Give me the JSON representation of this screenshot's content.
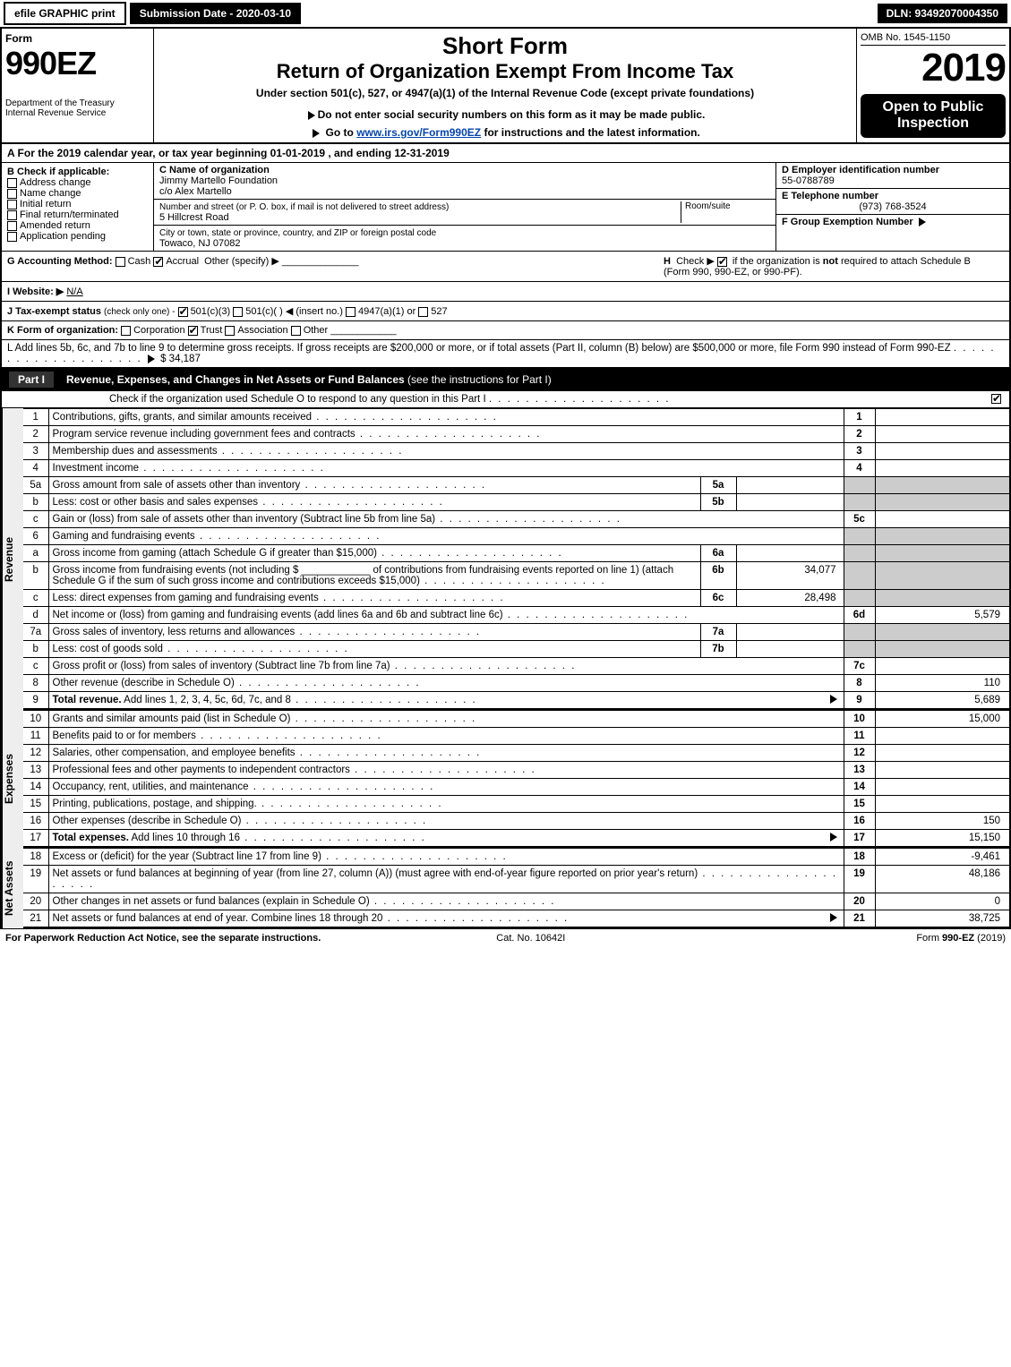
{
  "topbar": {
    "efile": "efile GRAPHIC print",
    "submission_label": "Submission Date - 2020-03-10",
    "dln": "DLN: 93492070004350"
  },
  "header": {
    "form_word": "Form",
    "form_num": "990EZ",
    "dept": "Department of the Treasury",
    "irs": "Internal Revenue Service",
    "title1": "Short Form",
    "title2": "Return of Organization Exempt From Income Tax",
    "subtitle": "Under section 501(c), 527, or 4947(a)(1) of the Internal Revenue Code (except private foundations)",
    "warn": "Do not enter social security numbers on this form as it may be made public.",
    "goto_pre": "Go to ",
    "goto_link": "www.irs.gov/Form990EZ",
    "goto_post": " for instructions and the latest information.",
    "omb": "OMB No. 1545-1150",
    "year": "2019",
    "open": "Open to Public Inspection"
  },
  "period": {
    "text": "A For the 2019 calendar year, or tax year beginning 01-01-2019 , and ending 12-31-2019"
  },
  "boxB": {
    "title": "B Check if applicable:",
    "opts": [
      "Address change",
      "Name change",
      "Initial return",
      "Final return/terminated",
      "Amended return",
      "Application pending"
    ]
  },
  "boxC": {
    "name_label": "C Name of organization",
    "name": "Jimmy Martello Foundation",
    "co": "c/o Alex Martello",
    "street_label": "Number and street (or P. O. box, if mail is not delivered to street address)",
    "room_label": "Room/suite",
    "street": "5 Hillcrest Road",
    "city_label": "City or town, state or province, country, and ZIP or foreign postal code",
    "city": "Towaco, NJ  07082"
  },
  "boxD": {
    "label": "D Employer identification number",
    "val": "55-0788789"
  },
  "boxE": {
    "label": "E Telephone number",
    "val": "(973) 768-3524"
  },
  "boxF": {
    "label": "F Group Exemption Number",
    "arrow": "▶"
  },
  "lineG": {
    "label": "G Accounting Method:",
    "cash": "Cash",
    "accrual": "Accrual",
    "other": "Other (specify) ▶"
  },
  "lineH": {
    "label": "H",
    "text": "Check ▶",
    "note": "if the organization is not required to attach Schedule B (Form 990, 990-EZ, or 990-PF).",
    "bold_not": "not"
  },
  "lineI": {
    "label": "I Website: ▶",
    "val": "N/A"
  },
  "lineJ": {
    "label": "J Tax-exempt status",
    "rest": "(check only one) -",
    "o1": "501(c)(3)",
    "o2": "501(c)( )",
    "ins": "◀ (insert no.)",
    "o3": "4947(a)(1) or",
    "o4": "527"
  },
  "lineK": {
    "label": "K Form of organization:",
    "opts": [
      "Corporation",
      "Trust",
      "Association",
      "Other"
    ],
    "checked": 1
  },
  "lineL": {
    "text": "L Add lines 5b, 6c, and 7b to line 9 to determine gross receipts. If gross receipts are $200,000 or more, or if total assets (Part II, column (B) below) are $500,000 or more, file Form 990 instead of Form 990-EZ",
    "arrow": "▶",
    "amount": "$ 34,187"
  },
  "partI": {
    "title": "Part I",
    "heading": "Revenue, Expenses, and Changes in Net Assets or Fund Balances",
    "sub": "(see the instructions for Part I)",
    "check": "Check if the organization used Schedule O to respond to any question in this Part I"
  },
  "sections": {
    "rev": "Revenue",
    "exp": "Expenses",
    "na": "Net Assets"
  },
  "rows": [
    {
      "n": "1",
      "lab": "Contributions, gifts, grants, and similar amounts received",
      "rn": "1",
      "rv": ""
    },
    {
      "n": "2",
      "lab": "Program service revenue including government fees and contracts",
      "rn": "2",
      "rv": ""
    },
    {
      "n": "3",
      "lab": "Membership dues and assessments",
      "rn": "3",
      "rv": ""
    },
    {
      "n": "4",
      "lab": "Investment income",
      "rn": "4",
      "rv": ""
    },
    {
      "n": "5a",
      "lab": "Gross amount from sale of assets other than inventory",
      "mid": "5a",
      "mval": "",
      "shade": true
    },
    {
      "n": "b",
      "lab": "Less: cost or other basis and sales expenses",
      "mid": "5b",
      "mval": "",
      "shade": true
    },
    {
      "n": "c",
      "lab": "Gain or (loss) from sale of assets other than inventory (Subtract line 5b from line 5a)",
      "rn": "5c",
      "rv": ""
    },
    {
      "n": "6",
      "lab": "Gaming and fundraising events",
      "shade": true,
      "noborder": true
    },
    {
      "n": "a",
      "lab": "Gross income from gaming (attach Schedule G if greater than $15,000)",
      "mid": "6a",
      "mval": "",
      "shade": true
    },
    {
      "n": "b",
      "lab": "Gross income from fundraising events (not including $ ____________ of contributions from fundraising events reported on line 1) (attach Schedule G if the sum of such gross income and contributions exceeds $15,000)",
      "mid": "6b",
      "mval": "34,077",
      "shade": true
    },
    {
      "n": "c",
      "lab": "Less: direct expenses from gaming and fundraising events",
      "mid": "6c",
      "mval": "28,498",
      "shade": true
    },
    {
      "n": "d",
      "lab": "Net income or (loss) from gaming and fundraising events (add lines 6a and 6b and subtract line 6c)",
      "rn": "6d",
      "rv": "5,579"
    },
    {
      "n": "7a",
      "lab": "Gross sales of inventory, less returns and allowances",
      "mid": "7a",
      "mval": "",
      "shade": true
    },
    {
      "n": "b",
      "lab": "Less: cost of goods sold",
      "mid": "7b",
      "mval": "",
      "shade": true
    },
    {
      "n": "c",
      "lab": "Gross profit or (loss) from sales of inventory (Subtract line 7b from line 7a)",
      "rn": "7c",
      "rv": ""
    },
    {
      "n": "8",
      "lab": "Other revenue (describe in Schedule O)",
      "rn": "8",
      "rv": "110"
    },
    {
      "n": "9",
      "lab": "Total revenue. Add lines 1, 2, 3, 4, 5c, 6d, 7c, and 8",
      "rn": "9",
      "rv": "5,689",
      "bold": true,
      "arrow": true
    }
  ],
  "exp_rows": [
    {
      "n": "10",
      "lab": "Grants and similar amounts paid (list in Schedule O)",
      "rn": "10",
      "rv": "15,000"
    },
    {
      "n": "11",
      "lab": "Benefits paid to or for members",
      "rn": "11",
      "rv": ""
    },
    {
      "n": "12",
      "lab": "Salaries, other compensation, and employee benefits",
      "rn": "12",
      "rv": ""
    },
    {
      "n": "13",
      "lab": "Professional fees and other payments to independent contractors",
      "rn": "13",
      "rv": ""
    },
    {
      "n": "14",
      "lab": "Occupancy, rent, utilities, and maintenance",
      "rn": "14",
      "rv": ""
    },
    {
      "n": "15",
      "lab": "Printing, publications, postage, and shipping.",
      "rn": "15",
      "rv": ""
    },
    {
      "n": "16",
      "lab": "Other expenses (describe in Schedule O)",
      "rn": "16",
      "rv": "150"
    },
    {
      "n": "17",
      "lab": "Total expenses. Add lines 10 through 16",
      "rn": "17",
      "rv": "15,150",
      "bold": true,
      "arrow": true
    }
  ],
  "na_rows": [
    {
      "n": "18",
      "lab": "Excess or (deficit) for the year (Subtract line 17 from line 9)",
      "rn": "18",
      "rv": "-9,461"
    },
    {
      "n": "19",
      "lab": "Net assets or fund balances at beginning of year (from line 27, column (A)) (must agree with end-of-year figure reported on prior year's return)",
      "rn": "19",
      "rv": "48,186"
    },
    {
      "n": "20",
      "lab": "Other changes in net assets or fund balances (explain in Schedule O)",
      "rn": "20",
      "rv": "0"
    },
    {
      "n": "21",
      "lab": "Net assets or fund balances at end of year. Combine lines 18 through 20",
      "rn": "21",
      "rv": "38,725",
      "arrow": true
    }
  ],
  "footer": {
    "left": "For Paperwork Reduction Act Notice, see the separate instructions.",
    "mid": "Cat. No. 10642I",
    "right": "Form 990-EZ (2019)"
  }
}
